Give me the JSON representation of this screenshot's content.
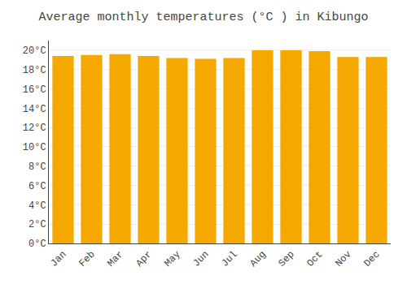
{
  "chart_data": {
    "type": "bar",
    "title": "Average monthly temperatures (°C ) in Kibungo",
    "categories": [
      "Jan",
      "Feb",
      "Mar",
      "Apr",
      "May",
      "Jun",
      "Jul",
      "Aug",
      "Sep",
      "Oct",
      "Nov",
      "Dec"
    ],
    "values": [
      19.4,
      19.5,
      19.6,
      19.4,
      19.2,
      19.1,
      19.2,
      20.0,
      20.0,
      19.9,
      19.3,
      19.3
    ],
    "color": "#F5A800",
    "ylim": [
      0,
      21
    ],
    "yticks": [
      {
        "value": 0,
        "label": "0°C"
      },
      {
        "value": 2,
        "label": "2°C"
      },
      {
        "value": 4,
        "label": "4°C"
      },
      {
        "value": 6,
        "label": "6°C"
      },
      {
        "value": 8,
        "label": "8°C"
      },
      {
        "value": 10,
        "label": "10°C"
      },
      {
        "value": 12,
        "label": "12°C"
      },
      {
        "value": 14,
        "label": "14°C"
      },
      {
        "value": 16,
        "label": "16°C"
      },
      {
        "value": 18,
        "label": "18°C"
      },
      {
        "value": 20,
        "label": "20°C"
      }
    ],
    "grid": true
  }
}
